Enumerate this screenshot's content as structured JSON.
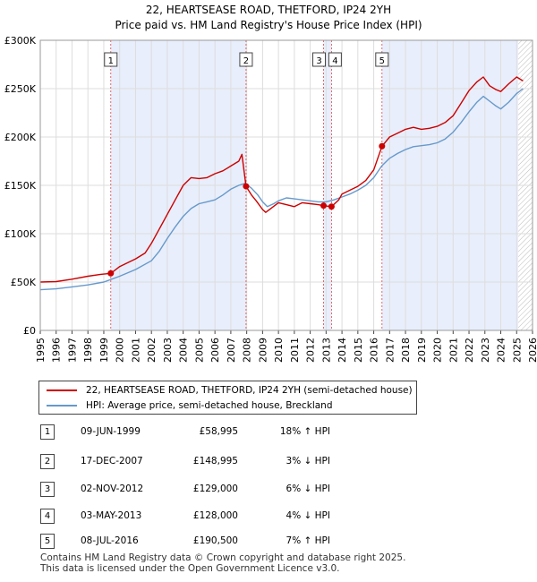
{
  "title": {
    "line1": "22, HEARTSEASE ROAD, THETFORD, IP24 2YH",
    "line2": "Price paid vs. HM Land Registry's House Price Index (HPI)"
  },
  "chart_data": {
    "type": "line",
    "xlim": [
      1995,
      2026
    ],
    "ylim": [
      0,
      300000
    ],
    "y_ticks": [
      {
        "value": 0,
        "label": "£0"
      },
      {
        "value": 50000,
        "label": "£50K"
      },
      {
        "value": 100000,
        "label": "£100K"
      },
      {
        "value": 150000,
        "label": "£150K"
      },
      {
        "value": 200000,
        "label": "£200K"
      },
      {
        "value": 250000,
        "label": "£250K"
      },
      {
        "value": 300000,
        "label": "£300K"
      }
    ],
    "x_ticks": [
      "1995",
      "1996",
      "1997",
      "1998",
      "1999",
      "2000",
      "2001",
      "2002",
      "2003",
      "2004",
      "2005",
      "2006",
      "2007",
      "2008",
      "2009",
      "2010",
      "2011",
      "2012",
      "2013",
      "2014",
      "2015",
      "2016",
      "2017",
      "2018",
      "2019",
      "2020",
      "2021",
      "2022",
      "2023",
      "2024",
      "2025",
      "2026"
    ],
    "ownership_shading": [
      {
        "from": 1999.44,
        "to": 2007.96
      },
      {
        "from": 2012.84,
        "to": 2013.34
      },
      {
        "from": 2016.52,
        "to": 2025.1
      }
    ],
    "forecast_from": 2025.1,
    "series": [
      {
        "name": "22, HEARTSEASE ROAD, THETFORD, IP24 2YH (semi-detached house)",
        "color": "#cc0000",
        "x": [
          1995,
          1996,
          1997,
          1998,
          1998.8,
          1999.44,
          2000,
          2001,
          2001.6,
          2002,
          2002.5,
          2003,
          2003.5,
          2004,
          2004.5,
          2005,
          2005.5,
          2006,
          2006.5,
          2007,
          2007.5,
          2007.7,
          2007.96,
          2008.3,
          2008.6,
          2009.0,
          2009.2,
          2009.6,
          2010,
          2010.5,
          2011,
          2011.5,
          2012,
          2012.5,
          2012.84,
          2013.34,
          2013.8,
          2014,
          2014.5,
          2015,
          2015.5,
          2016,
          2016.52,
          2017,
          2017.5,
          2018,
          2018.5,
          2019,
          2019.5,
          2020,
          2020.5,
          2021,
          2021.5,
          2022,
          2022.5,
          2022.9,
          2023.3,
          2023.7,
          2024,
          2024.5,
          2025.0,
          2025.4
        ],
        "y": [
          50000,
          50500,
          53000,
          56000,
          58000,
          58995,
          66000,
          74000,
          80000,
          90000,
          105000,
          120000,
          135000,
          150000,
          158000,
          157000,
          158000,
          162000,
          165000,
          170000,
          175000,
          182000,
          148995,
          140000,
          134000,
          125000,
          122000,
          127000,
          132000,
          130000,
          128000,
          132000,
          131000,
          130000,
          129000,
          128000,
          135000,
          141000,
          145000,
          149000,
          155000,
          166000,
          190500,
          200000,
          204000,
          208000,
          210000,
          208000,
          209000,
          211000,
          215000,
          222000,
          235000,
          248000,
          257000,
          262000,
          253000,
          249000,
          247000,
          255000,
          262000,
          258000
        ]
      },
      {
        "name": "HPI: Average price, semi-detached house, Breckland",
        "color": "#6699cc",
        "x": [
          1995,
          1996,
          1997,
          1998,
          1999,
          2000,
          2001,
          2002,
          2002.5,
          2003,
          2003.5,
          2004,
          2004.5,
          2005,
          2005.5,
          2006,
          2006.5,
          2007,
          2007.5,
          2007.9,
          2008.3,
          2008.7,
          2009.0,
          2009.3,
          2009.7,
          2010,
          2010.5,
          2011,
          2011.5,
          2012,
          2012.5,
          2013,
          2013.5,
          2014,
          2014.5,
          2015,
          2015.5,
          2016,
          2016.5,
          2017,
          2017.5,
          2018,
          2018.5,
          2019,
          2019.5,
          2020,
          2020.5,
          2021,
          2021.5,
          2022,
          2022.5,
          2022.9,
          2023.3,
          2023.7,
          2024,
          2024.5,
          2025.0,
          2025.4
        ],
        "y": [
          42000,
          43000,
          45000,
          47000,
          50000,
          56000,
          63000,
          72000,
          82000,
          95000,
          107000,
          118000,
          126000,
          131000,
          133000,
          135000,
          140000,
          146000,
          150000,
          152000,
          147000,
          140000,
          133000,
          128000,
          131000,
          134000,
          137000,
          136000,
          135000,
          134000,
          133000,
          133000,
          135000,
          138000,
          141000,
          145000,
          150000,
          158000,
          170000,
          178000,
          183000,
          187000,
          190000,
          191000,
          192000,
          194000,
          198000,
          205000,
          215000,
          226000,
          236000,
          242000,
          237000,
          232000,
          229000,
          236000,
          245000,
          250000
        ]
      }
    ],
    "markers": [
      {
        "label": "1",
        "x": 1999.44,
        "y": 58995
      },
      {
        "label": "2",
        "x": 2007.96,
        "y": 148995
      },
      {
        "label": "3",
        "x": 2012.84,
        "y": 129000
      },
      {
        "label": "4",
        "x": 2013.34,
        "y": 128000
      },
      {
        "label": "5",
        "x": 2016.52,
        "y": 190500
      }
    ]
  },
  "legend": {
    "property_label": "22, HEARTSEASE ROAD, THETFORD, IP24 2YH (semi-detached house)",
    "hpi_label": "HPI: Average price, semi-detached house, Breckland"
  },
  "sales": [
    {
      "num": "1",
      "date": "09-JUN-1999",
      "price": "£58,995",
      "hpi": "18% ↑ HPI"
    },
    {
      "num": "2",
      "date": "17-DEC-2007",
      "price": "£148,995",
      "hpi": "3% ↓ HPI"
    },
    {
      "num": "3",
      "date": "02-NOV-2012",
      "price": "£129,000",
      "hpi": "6% ↓ HPI"
    },
    {
      "num": "4",
      "date": "03-MAY-2013",
      "price": "£128,000",
      "hpi": "4% ↓ HPI"
    },
    {
      "num": "5",
      "date": "08-JUL-2016",
      "price": "£190,500",
      "hpi": "7% ↑ HPI"
    }
  ],
  "footer": {
    "line1": "Contains HM Land Registry data © Crown copyright and database right 2025.",
    "line2": "This data is licensed under the Open Government Licence v3.0."
  }
}
